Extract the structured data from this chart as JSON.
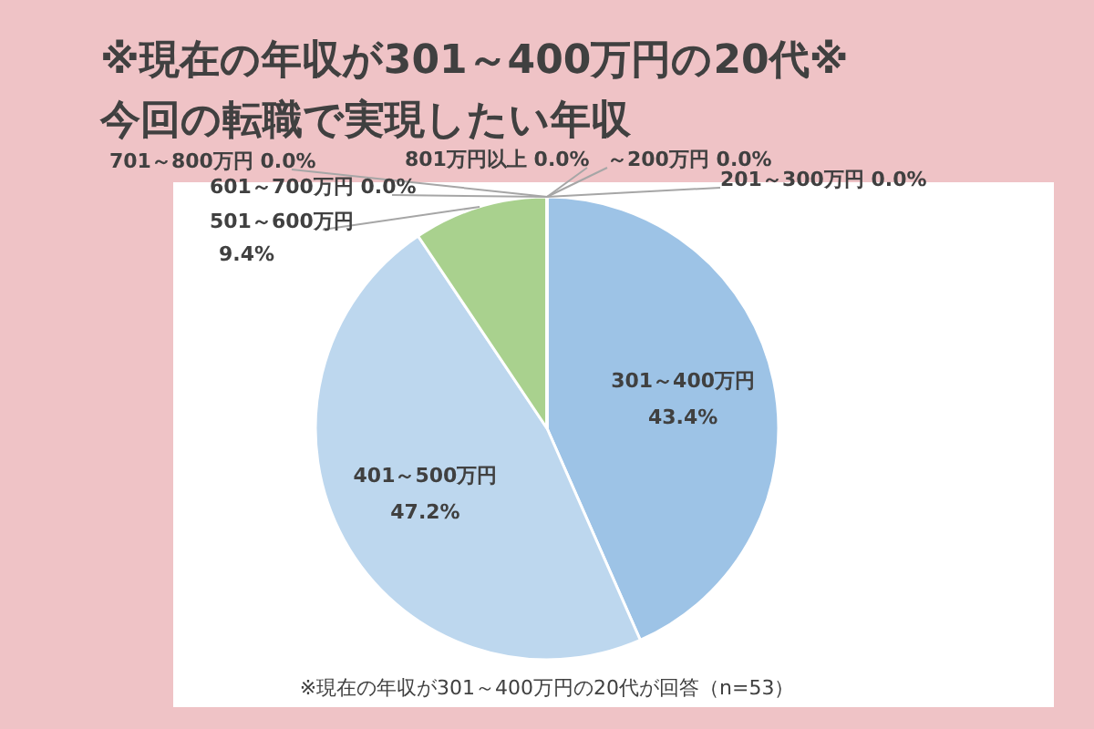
{
  "chart_data": {
    "type": "pie",
    "title": "※現在の年収が301～400万円の20代※",
    "subtitle": "今回の転職で実現したい年収",
    "categories": [
      "～200万円",
      "201～300万円",
      "301～400万円",
      "401～500万円",
      "501～600万円",
      "601～700万円",
      "701～800万円",
      "801万円以上"
    ],
    "values": [
      0.0,
      0.0,
      43.4,
      47.2,
      9.4,
      0.0,
      0.0,
      0.0
    ],
    "value_labels": [
      "0.0%",
      "0.0%",
      "43.4%",
      "47.2%",
      "9.4%",
      "0.0%",
      "0.0%",
      "0.0%"
    ],
    "colors": [
      "#5b9bd5",
      "#4472c4",
      "#9dc3e6",
      "#bdd7ee",
      "#a9d18e",
      "#70ad47",
      "#ffc000",
      "#ed7d31"
    ],
    "annotations": [
      "※現在の年収が301～400万円の20代が回答（n=53）"
    ]
  }
}
